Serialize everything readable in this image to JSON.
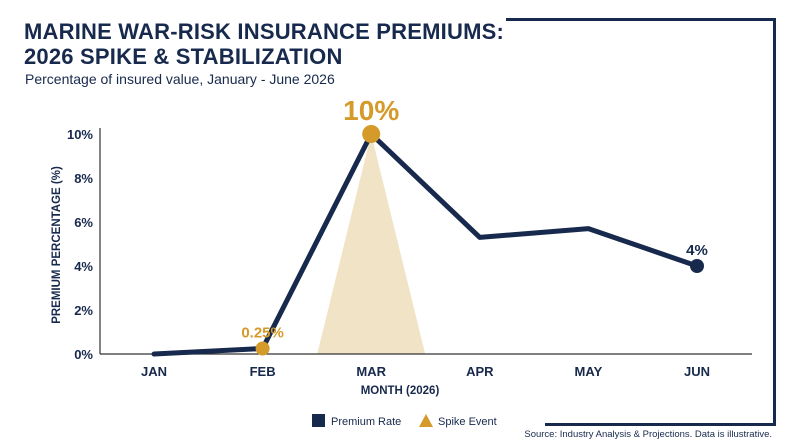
{
  "header": {
    "title_line1": "MARINE WAR-RISK INSURANCE PREMIUMS:",
    "title_line2": "2026 SPIKE & STABILIZATION",
    "subtitle": "Percentage of insured value, January - June 2026"
  },
  "footer": {
    "source": "Source: Industry Analysis & Projections. Data is illustrative."
  },
  "colors": {
    "primary": "#17294c",
    "accent": "#d49a2a",
    "spike_fill": "#f1e3c6",
    "axis": "#333333"
  },
  "chart_data": {
    "type": "line",
    "title": "MARINE WAR-RISK INSURANCE PREMIUMS: 2026 SPIKE & STABILIZATION",
    "subtitle": "Percentage of insured value, January - June 2026",
    "xlabel": "MONTH (2026)",
    "ylabel": "PREMIUM PERCENTAGE (%)",
    "categories": [
      "JAN",
      "FEB",
      "MAR",
      "APR",
      "MAY",
      "JUN"
    ],
    "yticks": [
      "0%",
      "2%",
      "4%",
      "6%",
      "8%",
      "10%"
    ],
    "ylim": [
      0,
      10
    ],
    "grid": false,
    "series": [
      {
        "name": "Premium Rate",
        "values": [
          0,
          0.25,
          10,
          5.3,
          5.7,
          4
        ]
      }
    ],
    "spike_event": {
      "category": "MAR",
      "value": 10
    },
    "annotations": [
      {
        "category": "FEB",
        "value": 0.25,
        "text": "0.25%",
        "style": "accent"
      },
      {
        "category": "MAR",
        "value": 10,
        "text": "10%",
        "style": "accent-large"
      },
      {
        "category": "JUN",
        "value": 4,
        "text": "4%",
        "style": "primary"
      }
    ],
    "legend": {
      "position": "bottom-center",
      "items": [
        {
          "label": "Premium Rate",
          "marker": "square"
        },
        {
          "label": "Spike Event",
          "marker": "triangle"
        }
      ]
    }
  }
}
